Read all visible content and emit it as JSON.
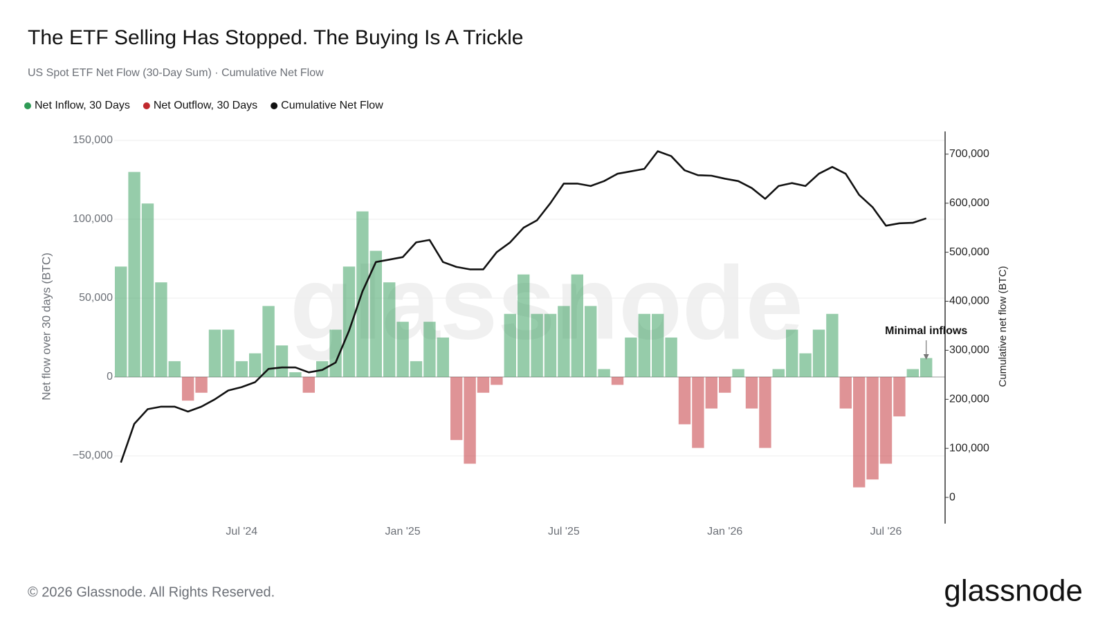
{
  "chart_data": {
    "type": "bar",
    "title": "The ETF Selling Has Stopped. The Buying Is A Trickle",
    "subtitle": "US Spot ETF Net Flow (30-Day Sum) · Cumulative Net Flow",
    "y_label": "Net flow over 30 days (BTC)",
    "y2_label": "Cumulative net flow (BTC)",
    "annotation": "Minimal inflows",
    "watermark": "glassnode",
    "footer": "© 2026 Glassnode. All Rights Reserved.",
    "logo": "glassnode",
    "grid": true,
    "categories": [
      null,
      null,
      null,
      null,
      null,
      null,
      null,
      null,
      null,
      "Jul '24",
      null,
      null,
      null,
      null,
      null,
      null,
      null,
      null,
      null,
      null,
      null,
      "Jan '25",
      null,
      null,
      null,
      null,
      null,
      null,
      null,
      null,
      null,
      null,
      null,
      "Jul '25",
      null,
      null,
      null,
      null,
      null,
      null,
      null,
      null,
      null,
      null,
      null,
      "Jan '26",
      null,
      null,
      null,
      null,
      null,
      null,
      null,
      null,
      null,
      null,
      null,
      "Jul '26",
      null,
      null,
      null
    ],
    "ylim": [
      -93000,
      150000
    ],
    "yticks": [
      {
        "value": -50000,
        "label": "−50,000"
      },
      0,
      {
        "value": 50000,
        "label": "50,000"
      },
      {
        "value": 100000,
        "label": "100,000"
      },
      {
        "value": 150000,
        "label": "150,000"
      }
    ],
    "y2lim": [
      -53500,
      728000
    ],
    "y2ticks": [
      0,
      {
        "value": 100000,
        "label": "100,000"
      },
      {
        "value": 200000,
        "label": "200,000"
      },
      {
        "value": 300000,
        "label": "300,000"
      },
      {
        "value": 400000,
        "label": "400,000"
      },
      {
        "value": 500000,
        "label": "500,000"
      },
      {
        "value": 600000,
        "label": "600,000"
      },
      {
        "value": 700000,
        "label": "700,000"
      }
    ],
    "series": [
      {
        "name": "Net Inflow, 30 Days",
        "type": "bar",
        "color": "#2e9a55",
        "values": [
          70000,
          130000,
          110000,
          60000,
          10000,
          null,
          null,
          30000,
          30000,
          10000,
          15000,
          45000,
          20000,
          3000,
          null,
          10000,
          30000,
          70000,
          105000,
          80000,
          60000,
          35000,
          10000,
          35000,
          25000,
          null,
          null,
          null,
          null,
          40000,
          65000,
          40000,
          40000,
          45000,
          65000,
          45000,
          5000,
          null,
          25000,
          40000,
          40000,
          25000,
          null,
          null,
          null,
          null,
          5000,
          null,
          null,
          5000,
          30000,
          15000,
          30000,
          40000,
          null,
          null,
          null,
          null,
          null,
          5000,
          12000
        ]
      },
      {
        "name": "Net Outflow, 30 Days",
        "type": "bar",
        "color": "#c0282d",
        "values": [
          null,
          null,
          null,
          null,
          null,
          -15000,
          -10000,
          null,
          null,
          null,
          null,
          null,
          null,
          null,
          -10000,
          null,
          null,
          null,
          null,
          null,
          null,
          null,
          null,
          null,
          null,
          -40000,
          -55000,
          -10000,
          -5000,
          null,
          null,
          null,
          null,
          null,
          null,
          null,
          null,
          -5000,
          null,
          null,
          null,
          null,
          -30000,
          -45000,
          -20000,
          -10000,
          null,
          -20000,
          -45000,
          null,
          null,
          null,
          null,
          null,
          -20000,
          -70000,
          -65000,
          -55000,
          -25000,
          null,
          null
        ]
      },
      {
        "name": "Cumulative Net Flow",
        "type": "line",
        "axis": "y2",
        "color": "#111111",
        "values": [
          71000,
          150000,
          180000,
          185000,
          185000,
          175000,
          185000,
          200000,
          218000,
          225000,
          235000,
          262000,
          265000,
          265000,
          255000,
          260000,
          275000,
          340000,
          420000,
          480000,
          485000,
          490000,
          520000,
          525000,
          480000,
          470000,
          465000,
          465000,
          500000,
          520000,
          550000,
          565000,
          600000,
          640000,
          640000,
          635000,
          645000,
          660000,
          665000,
          670000,
          706000,
          696000,
          667000,
          657000,
          656000,
          650000,
          645000,
          631000,
          609000,
          635000,
          641000,
          635000,
          660000,
          674000,
          660000,
          617000,
          592000,
          554000,
          559000,
          560000,
          569000
        ]
      }
    ]
  }
}
